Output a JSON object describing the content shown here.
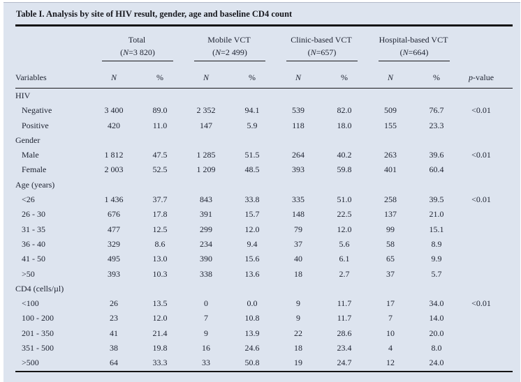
{
  "title": "Table I. Analysis by site of HIV result, gender, age and baseline CD4 count",
  "colors": {
    "panel_bg": "#dde4ef",
    "text": "#1d2230",
    "rule": "#141414"
  },
  "columns": {
    "variables_label": "Variables",
    "n_symbol": "N",
    "pct_symbol": "%",
    "p_symbol": "p",
    "p_rest": "-value",
    "groups": [
      {
        "name": "Total",
        "n_open": "(",
        "n_sym": "N",
        "n_rest": "=3 820)"
      },
      {
        "name": "Mobile VCT",
        "n_open": "(",
        "n_sym": "N",
        "n_rest": "=2 499)"
      },
      {
        "name": "Clinic-based VCT",
        "n_open": "(",
        "n_sym": "N",
        "n_rest": "=657)"
      },
      {
        "name": "Hospital-based VCT",
        "n_open": "(",
        "n_sym": "N",
        "n_rest": "=664)"
      }
    ]
  },
  "sections": [
    {
      "header": "HIV",
      "rows": [
        {
          "label": "Negative",
          "cells": [
            "3 400",
            "89.0",
            "2 352",
            "94.1",
            "539",
            "82.0",
            "509",
            "76.7"
          ],
          "p": "<0.01"
        },
        {
          "label": "Positive",
          "cells": [
            "420",
            "11.0",
            "147",
            "5.9",
            "118",
            "18.0",
            "155",
            "23.3"
          ],
          "p": ""
        }
      ]
    },
    {
      "header": "Gender",
      "rows": [
        {
          "label": "Male",
          "cells": [
            "1 812",
            "47.5",
            "1 285",
            "51.5",
            "264",
            "40.2",
            "263",
            "39.6"
          ],
          "p": "<0.01"
        },
        {
          "label": "Female",
          "cells": [
            "2 003",
            "52.5",
            "1 209",
            "48.5",
            "393",
            "59.8",
            "401",
            "60.4"
          ],
          "p": ""
        }
      ]
    },
    {
      "header": "Age (years)",
      "rows": [
        {
          "label": "<26",
          "cells": [
            "1 436",
            "37.7",
            "843",
            "33.8",
            "335",
            "51.0",
            "258",
            "39.5"
          ],
          "p": "<0.01"
        },
        {
          "label": "26 - 30",
          "cells": [
            "676",
            "17.8",
            "391",
            "15.7",
            "148",
            "22.5",
            "137",
            "21.0"
          ],
          "p": ""
        },
        {
          "label": "31 - 35",
          "cells": [
            "477",
            "12.5",
            "299",
            "12.0",
            "79",
            "12.0",
            "99",
            "15.1"
          ],
          "p": ""
        },
        {
          "label": "36 - 40",
          "cells": [
            "329",
            "8.6",
            "234",
            "9.4",
            "37",
            "5.6",
            "58",
            "8.9"
          ],
          "p": ""
        },
        {
          "label": "41 - 50",
          "cells": [
            "495",
            "13.0",
            "390",
            "15.6",
            "40",
            "6.1",
            "65",
            "9.9"
          ],
          "p": ""
        },
        {
          "label": ">50",
          "cells": [
            "393",
            "10.3",
            "338",
            "13.6",
            "18",
            "2.7",
            "37",
            "5.7"
          ],
          "p": ""
        }
      ]
    },
    {
      "header": "CD4 (cells/µl)",
      "rows": [
        {
          "label": "<100",
          "cells": [
            "26",
            "13.5",
            "0",
            "0.0",
            "9",
            "11.7",
            "17",
            "34.0"
          ],
          "p": "<0.01"
        },
        {
          "label": "100 - 200",
          "cells": [
            "23",
            "12.0",
            "7",
            "10.8",
            "9",
            "11.7",
            "7",
            "14.0"
          ],
          "p": ""
        },
        {
          "label": "201 - 350",
          "cells": [
            "41",
            "21.4",
            "9",
            "13.9",
            "22",
            "28.6",
            "10",
            "20.0"
          ],
          "p": ""
        },
        {
          "label": "351 - 500",
          "cells": [
            "38",
            "19.8",
            "16",
            "24.6",
            "18",
            "23.4",
            "4",
            "8.0"
          ],
          "p": ""
        },
        {
          "label": ">500",
          "cells": [
            "64",
            "33.3",
            "33",
            "50.8",
            "19",
            "24.7",
            "12",
            "24.0"
          ],
          "p": ""
        }
      ]
    }
  ]
}
